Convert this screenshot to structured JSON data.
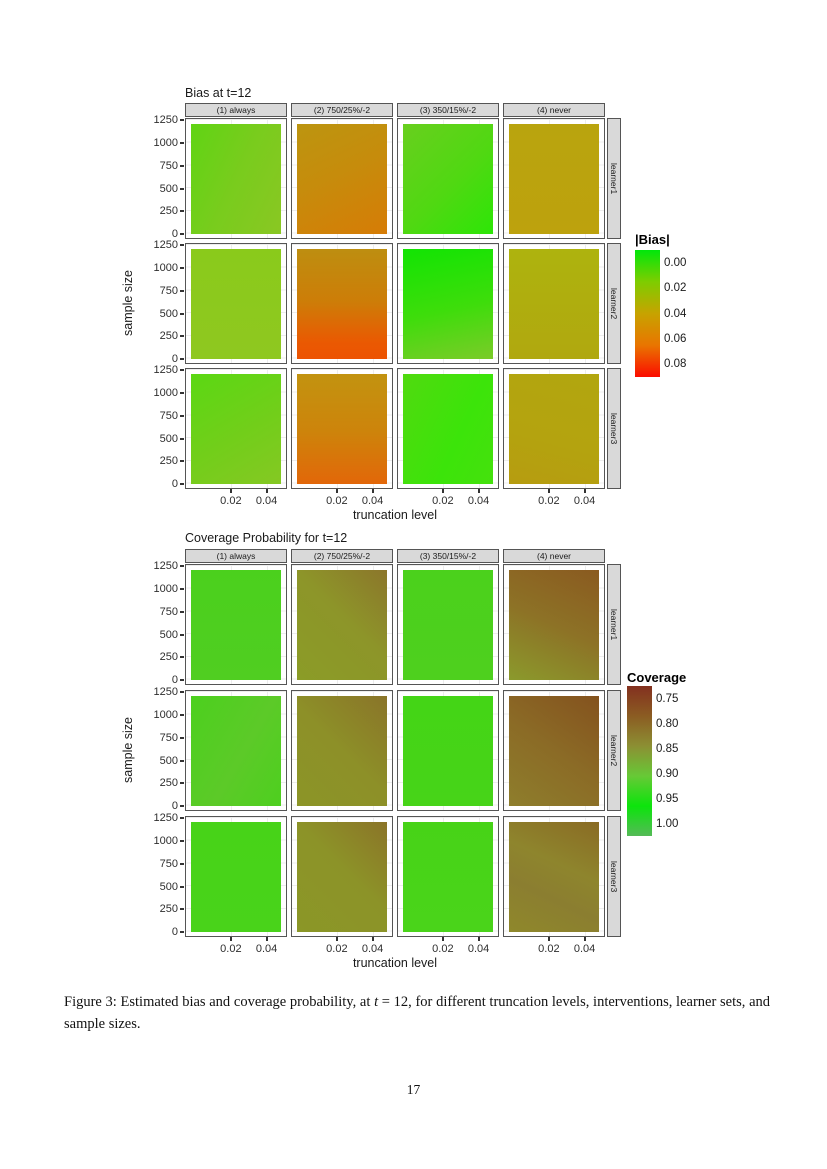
{
  "page": {
    "background": "#ffffff",
    "page_number": "17"
  },
  "caption": {
    "prefix": "Figure 3: Estimated bias and coverage probability, at ",
    "math_var": "t",
    "suffix": " = 12, for different truncation levels, interventions, learner sets, and sample sizes."
  },
  "chart_data": [
    {
      "type": "heatmap",
      "title": "Bias at t=12",
      "xlabel": "truncation level",
      "ylabel": "sample size",
      "x_tick_labels": [
        "0.02",
        "0.04"
      ],
      "y_tick_labels": [
        "1250",
        "1000",
        "750",
        "500",
        "250",
        "0"
      ],
      "col_facets": [
        "(1) always",
        "(2) 750/25%/-2",
        "(3) 350/15%/-2",
        "(4) never"
      ],
      "row_facets": [
        "learner1",
        "learner2",
        "learner3"
      ],
      "x_range": [
        0.01,
        0.05
      ],
      "y_range": [
        0,
        1250
      ],
      "grid": true,
      "legend": {
        "title": "|Bias|",
        "position": "right",
        "tick_labels": [
          "0.00",
          "0.02",
          "0.04",
          "0.06",
          "0.08"
        ],
        "colors": [
          "#00e70b",
          "#7ecd00",
          "#c7a300",
          "#e97500",
          "#fb0c00"
        ]
      },
      "panels": [
        [
          {
            "row": "learner1",
            "col": "(1) always",
            "approx_mean_bias": 0.018,
            "bg": "linear-gradient(115deg, #60d414 0%, #79cc1d 50%, #8ac723 100%)"
          },
          {
            "row": "learner1",
            "col": "(2) 750/25%/-2",
            "approx_mean_bias": 0.047,
            "bg": "linear-gradient(155deg, #bc9510 0%, #c68c0c 45%, #d67c06 100%)"
          },
          {
            "row": "learner1",
            "col": "(3) 350/15%/-2",
            "approx_mean_bias": 0.012,
            "bg": "linear-gradient(135deg, #68cf1e 0%, #50d812 55%, #2de607 100%)"
          },
          {
            "row": "learner1",
            "col": "(4) never",
            "approx_mean_bias": 0.04,
            "bg": "linear-gradient(180deg, #b9a40e 0%, #bda20d 100%)"
          }
        ],
        [
          {
            "row": "learner2",
            "col": "(1) always",
            "approx_mean_bias": 0.02,
            "bg": "linear-gradient(180deg, #8aca1b 0%, #8fc820 100%)"
          },
          {
            "row": "learner2",
            "col": "(2) 750/25%/-2",
            "approx_mean_bias": 0.055,
            "bg": "linear-gradient(180deg, #bd8e10 0%, #cd7d08 48%, #ea5902 85%, #ed5302 100%)"
          },
          {
            "row": "learner2",
            "col": "(3) 350/15%/-2",
            "approx_mean_bias": 0.01,
            "bg": "linear-gradient(168deg, #12e403 0%, #3edd0b 55%, #7bcb29 100%)"
          },
          {
            "row": "learner2",
            "col": "(4) never",
            "approx_mean_bias": 0.036,
            "bg": "linear-gradient(180deg, #aeb30e 0%, #b0a80f 100%)"
          }
        ],
        [
          {
            "row": "learner3",
            "col": "(1) always",
            "approx_mean_bias": 0.017,
            "bg": "linear-gradient(150deg, #5bd813 0%, #72ce1a 55%, #85c823 100%)"
          },
          {
            "row": "learner3",
            "col": "(2) 750/25%/-2",
            "approx_mean_bias": 0.05,
            "bg": "linear-gradient(180deg, #c29310 0%, #cd840b 52%, #e26709 100%)"
          },
          {
            "row": "learner3",
            "col": "(3) 350/15%/-2",
            "approx_mean_bias": 0.007,
            "bg": "linear-gradient(115deg, #50da0f 0%, #3ce40a 60%, #45e10d 100%)"
          },
          {
            "row": "learner3",
            "col": "(4) never",
            "approx_mean_bias": 0.038,
            "bg": "linear-gradient(195deg, #b2a60f 0%, #b4a30f 60%, #b69c10 100%)"
          }
        ]
      ]
    },
    {
      "type": "heatmap",
      "title": "Coverage Probability for t=12",
      "xlabel": "truncation level",
      "ylabel": "sample size",
      "x_tick_labels": [
        "0.02",
        "0.04"
      ],
      "y_tick_labels": [
        "1250",
        "1000",
        "750",
        "500",
        "250",
        "0"
      ],
      "col_facets": [
        "(1) always",
        "(2) 750/25%/-2",
        "(3) 350/15%/-2",
        "(4) never"
      ],
      "row_facets": [
        "learner1",
        "learner2",
        "learner3"
      ],
      "x_range": [
        0.01,
        0.05
      ],
      "y_range": [
        0,
        1250
      ],
      "grid": true,
      "legend": {
        "title": "Coverage",
        "position": "right",
        "tick_labels": [
          "0.75",
          "0.80",
          "0.85",
          "0.90",
          "0.95",
          "1.00"
        ],
        "colors": [
          "#83301f",
          "#8b5c22",
          "#8c8f33",
          "#67c936",
          "#0ce40c",
          "#55ba57"
        ]
      },
      "panels": [
        [
          {
            "row": "learner1",
            "col": "(1) always",
            "approx_mean_coverage": 0.93,
            "bg": "linear-gradient(180deg, #4bd01d 0%, #50ce21 100%)"
          },
          {
            "row": "learner1",
            "col": "(2) 750/25%/-2",
            "approx_mean_coverage": 0.87,
            "bg": "linear-gradient(225deg, #8c762b 0%, #8d9529 45%, #8b9c27 100%)"
          },
          {
            "row": "learner1",
            "col": "(3) 350/15%/-2",
            "approx_mean_coverage": 0.93,
            "bg": "linear-gradient(180deg, #4bd11c 0%, #4ed01e 100%)"
          },
          {
            "row": "learner1",
            "col": "(4) never",
            "approx_mean_coverage": 0.82,
            "bg": "linear-gradient(205deg, #8a5a20 0%, #8d7226 50%, #8b9a2c 100%)"
          }
        ],
        [
          {
            "row": "learner2",
            "col": "(1) always",
            "approx_mean_coverage": 0.93,
            "bg": "linear-gradient(120deg, #4cd01e 0%, #5cca28 55%, #4ecf1f 100%)"
          },
          {
            "row": "learner2",
            "col": "(2) 750/25%/-2",
            "approx_mean_coverage": 0.86,
            "bg": "linear-gradient(225deg, #8a7429 0%, #8d9028 50%, #8c9527 100%)"
          },
          {
            "row": "learner2",
            "col": "(3) 350/15%/-2",
            "approx_mean_coverage": 0.94,
            "bg": "linear-gradient(180deg, #44d516 0%, #47d418 100%)"
          },
          {
            "row": "learner2",
            "col": "(4) never",
            "approx_mean_coverage": 0.81,
            "bg": "linear-gradient(215deg, #84521e 0%, #8b6b26 50%, #8e7e2c 100%)"
          }
        ],
        [
          {
            "row": "learner3",
            "col": "(1) always",
            "approx_mean_coverage": 0.93,
            "bg": "linear-gradient(180deg, #47d318 0%, #49d31a 100%)"
          },
          {
            "row": "learner3",
            "col": "(2) 750/25%/-2",
            "approx_mean_coverage": 0.86,
            "bg": "linear-gradient(225deg, #8b7428 0%, #8c9328 45%, #8b9727 100%)"
          },
          {
            "row": "learner3",
            "col": "(3) 350/15%/-2",
            "approx_mean_coverage": 0.93,
            "bg": "linear-gradient(180deg, #47d317 0%, #4ad41a 100%)"
          },
          {
            "row": "learner3",
            "col": "(4) never",
            "approx_mean_coverage": 0.84,
            "bg": "linear-gradient(205deg, #8a6b24 0%, #8e852d 40%, #8b7e30 65%, #8f882b 100%)"
          }
        ]
      ]
    }
  ]
}
